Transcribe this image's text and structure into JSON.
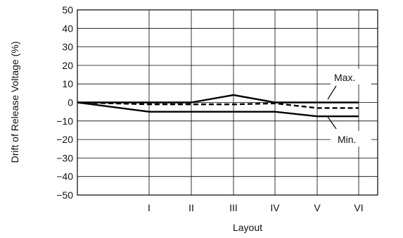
{
  "chart_data": {
    "type": "line",
    "xlabel": "Layout",
    "ylabel": "Drift of Release Voltage (%)",
    "categories": [
      "",
      "I",
      "II",
      "III",
      "IV",
      "V",
      "VI"
    ],
    "ylim": [
      -50,
      50
    ],
    "yticks": [
      "50",
      "40",
      "30",
      "20",
      "10",
      "0",
      "−10",
      "−20",
      "−30",
      "−40",
      "−50"
    ],
    "grid": true,
    "series": [
      {
        "name": "Max.",
        "style": "solid",
        "values": [
          0,
          0,
          0,
          4,
          0,
          0,
          0
        ]
      },
      {
        "name": "",
        "style": "solid",
        "values": [
          0,
          -5,
          -5,
          -5,
          -5,
          -7.5,
          -7.5
        ]
      },
      {
        "name": "Min.",
        "style": "dashed",
        "values": [
          0,
          -1,
          -1,
          -1,
          -0.5,
          -3,
          -3
        ]
      }
    ],
    "annotations": [
      "Max.",
      "Min."
    ],
    "colors": {
      "line": "#000000",
      "grid": "#000000"
    }
  }
}
